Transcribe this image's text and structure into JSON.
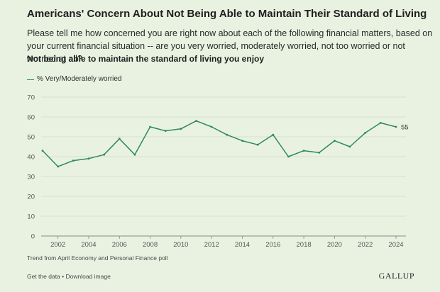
{
  "header": {
    "title": "Americans' Concern About Not Being Able to Maintain Their Standard of Living",
    "question": "Please tell me how concerned you are right now about each of the following financial matters, based on your current financial situation -- are you very worried, moderately worried, not too worried or not worried at all?",
    "subject": "Not being able to maintain the standard of living you enjoy"
  },
  "legend": {
    "label": "% Very/Moderately worried"
  },
  "chart_data": {
    "type": "line",
    "title": "",
    "xlabel": "",
    "ylabel": "",
    "x": [
      2001,
      2002,
      2003,
      2004,
      2005,
      2006,
      2007,
      2008,
      2009,
      2010,
      2011,
      2012,
      2013,
      2014,
      2015,
      2016,
      2017,
      2018,
      2019,
      2020,
      2021,
      2022,
      2023,
      2024
    ],
    "series": [
      {
        "name": "% Very/Moderately worried",
        "values": [
          43,
          35,
          38,
          39,
          41,
          49,
          41,
          55,
          53,
          54,
          58,
          55,
          51,
          48,
          46,
          51,
          40,
          43,
          42,
          48,
          45,
          52,
          57,
          55
        ]
      }
    ],
    "ylim": [
      0,
      70
    ],
    "yticks": [
      0,
      10,
      20,
      30,
      40,
      50,
      60,
      70
    ],
    "xticks": [
      2002,
      2004,
      2006,
      2008,
      2010,
      2012,
      2014,
      2016,
      2018,
      2020,
      2022,
      2024
    ],
    "end_label": "55",
    "grid": true,
    "color": "#2e8b57"
  },
  "footer": {
    "note": "Trend from April Economy and Personal Finance poll",
    "links": "Get the data • Download image",
    "brand": "GALLUP"
  }
}
